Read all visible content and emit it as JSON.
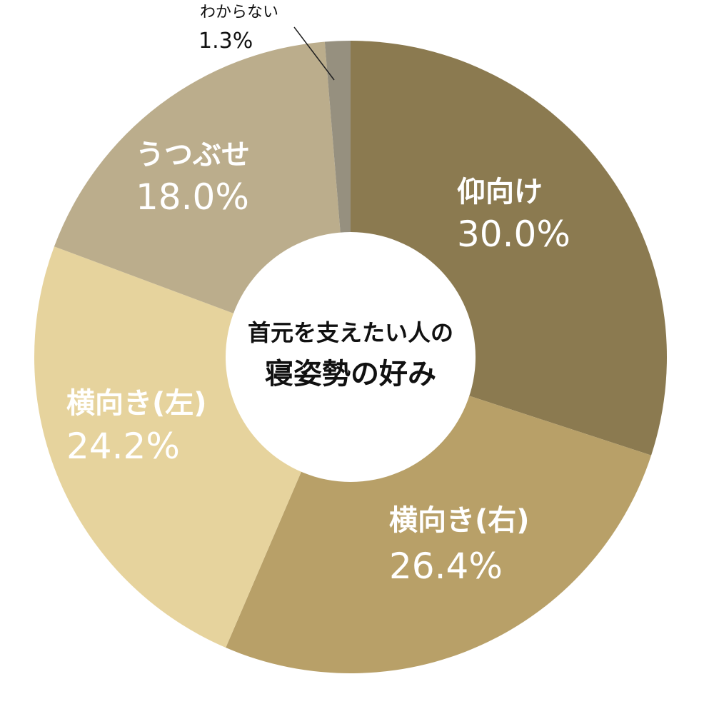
{
  "chart_data": {
    "type": "pie",
    "center_title": [
      "首元を支えたい人の",
      "寝姿勢の好み"
    ],
    "slices": [
      {
        "label": "仰向け",
        "value": 30.0,
        "value_label": "30.0%",
        "color": "#8b7a50"
      },
      {
        "label": "横向き(右)",
        "value": 26.4,
        "value_label": "26.4%",
        "color": "#b8a068"
      },
      {
        "label": "横向き(左)",
        "value": 24.2,
        "value_label": "24.2%",
        "color": "#e6d39d"
      },
      {
        "label": "うつぶせ",
        "value": 18.0,
        "value_label": "18.0%",
        "color": "#bbad8c"
      },
      {
        "label": "わからない",
        "value": 1.3,
        "value_label": "1.3%",
        "color": "#96907f"
      }
    ]
  }
}
